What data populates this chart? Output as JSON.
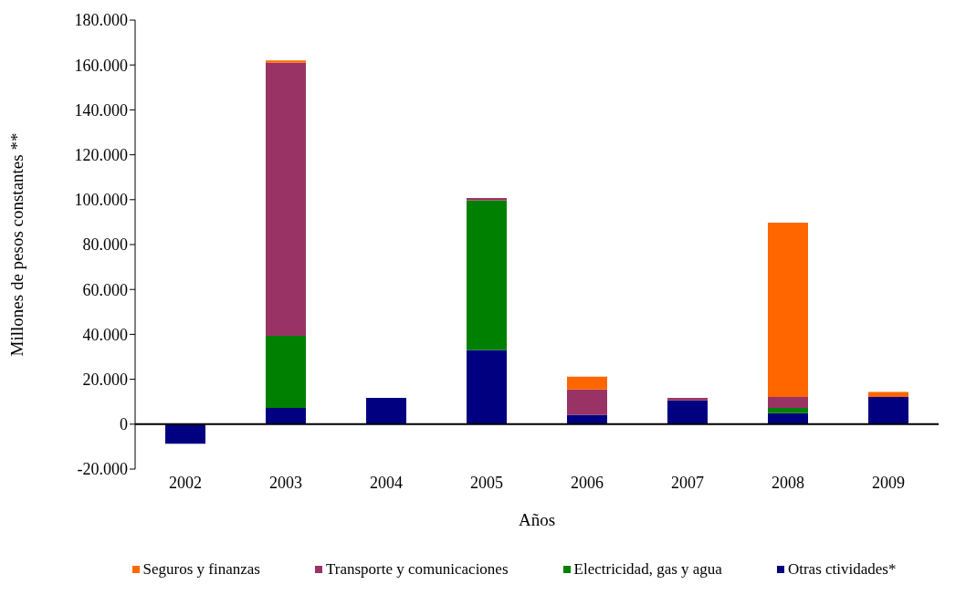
{
  "chart_data": {
    "type": "bar",
    "stacked": true,
    "xlabel": "Años",
    "ylabel": "Millones de pesos constantes **",
    "categories": [
      "2002",
      "2003",
      "2004",
      "2005",
      "2006",
      "2007",
      "2008",
      "2009"
    ],
    "series": [
      {
        "name": "Otras ctividades*",
        "color": "#000080",
        "values": [
          -8700,
          7200,
          11700,
          33000,
          4200,
          10600,
          4900,
          12100
        ]
      },
      {
        "name": "Electricidad, gas y agua",
        "color": "#008000",
        "values": [
          null,
          32200,
          null,
          66700,
          null,
          null,
          2300,
          null
        ]
      },
      {
        "name": "Transporte y comunicaciones",
        "color": "#993366",
        "values": [
          null,
          121600,
          null,
          1000,
          11300,
          1100,
          4900,
          null
        ]
      },
      {
        "name": "Seguros y finanzas",
        "color": "#ff6600",
        "values": [
          null,
          1000,
          null,
          null,
          5700,
          null,
          77700,
          2300
        ]
      }
    ],
    "ylim": [
      -20000,
      180000
    ],
    "yticks": [
      {
        "value": -20000,
        "label": "-20.000"
      },
      {
        "value": 0,
        "label": "0"
      },
      {
        "value": 20000,
        "label": "20.000"
      },
      {
        "value": 40000,
        "label": "40.000"
      },
      {
        "value": 60000,
        "label": "60.000"
      },
      {
        "value": 80000,
        "label": "80.000"
      },
      {
        "value": 100000,
        "label": "100.000"
      },
      {
        "value": 120000,
        "label": "120.000"
      },
      {
        "value": 140000,
        "label": "140.000"
      },
      {
        "value": 160000,
        "label": "160.000"
      },
      {
        "value": 180000,
        "label": "180.000"
      }
    ],
    "ref_lines": [
      {
        "axis": "y",
        "value": 0
      }
    ],
    "legend": "bottom"
  }
}
